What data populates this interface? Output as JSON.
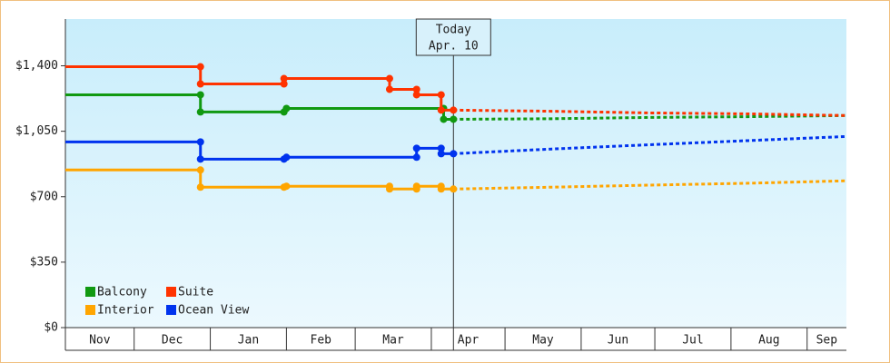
{
  "chart_data": {
    "type": "line",
    "annotation": {
      "x": 160,
      "title": "Today",
      "date": "Apr. 10"
    },
    "xlim": [
      2,
      320
    ],
    "xticks": [
      {
        "value": 0,
        "label": "Nov"
      },
      {
        "value": 30,
        "label": "Dec"
      },
      {
        "value": 61,
        "label": "Jan"
      },
      {
        "value": 92,
        "label": "Feb"
      },
      {
        "value": 120,
        "label": "Mar"
      },
      {
        "value": 151,
        "label": "Apr"
      },
      {
        "value": 181,
        "label": "May"
      },
      {
        "value": 212,
        "label": "Jun"
      },
      {
        "value": 242,
        "label": "Jul"
      },
      {
        "value": 273,
        "label": "Aug"
      },
      {
        "value": 304,
        "label": "Sep"
      }
    ],
    "ylim": [
      0,
      1650
    ],
    "yticks": [
      {
        "value": 0,
        "label": "$0"
      },
      {
        "value": 350,
        "label": "$350"
      },
      {
        "value": 700,
        "label": "$700"
      },
      {
        "value": 1050,
        "label": "$1,050"
      },
      {
        "value": 1400,
        "label": "$1,400"
      }
    ],
    "series": [
      {
        "name": "Balcony",
        "color": "#119911",
        "x": [
          2,
          57,
          57,
          91,
          92,
          156,
          156,
          160
        ],
        "values": [
          1245,
          1245,
          1153,
          1153,
          1172,
          1172,
          1114,
          1114
        ],
        "forecast_x": [
          160,
          200,
          240,
          280,
          320
        ],
        "forecast": [
          1114,
          1117,
          1124,
          1128,
          1134
        ]
      },
      {
        "name": "Suite",
        "color": "#ff3300",
        "x": [
          2,
          57,
          57,
          91,
          91,
          134,
          134,
          145,
          145,
          155,
          155,
          160
        ],
        "values": [
          1395,
          1395,
          1303,
          1303,
          1332,
          1332,
          1274,
          1274,
          1245,
          1245,
          1163,
          1163
        ],
        "forecast_x": [
          160,
          200,
          240,
          280,
          320
        ],
        "forecast": [
          1163,
          1157,
          1148,
          1143,
          1134
        ]
      },
      {
        "name": "Interior",
        "color": "#ffa500",
        "x": [
          2,
          57,
          57,
          91,
          92,
          134,
          134,
          145,
          145,
          155,
          155,
          160
        ],
        "values": [
          843,
          843,
          751,
          751,
          756,
          756,
          741,
          741,
          756,
          756,
          741,
          741
        ],
        "forecast_x": [
          160,
          200,
          240,
          280,
          320
        ],
        "forecast": [
          741,
          751,
          762,
          772,
          785
        ]
      },
      {
        "name": "Ocean View",
        "color": "#0033ee",
        "x": [
          2,
          57,
          57,
          91,
          92,
          145,
          145,
          155,
          155,
          160
        ],
        "values": [
          993,
          993,
          901,
          901,
          911,
          911,
          959,
          959,
          930,
          930
        ],
        "forecast_x": [
          160,
          200,
          240,
          280,
          320
        ],
        "forecast": [
          930,
          955,
          978,
          1000,
          1022
        ]
      }
    ]
  }
}
